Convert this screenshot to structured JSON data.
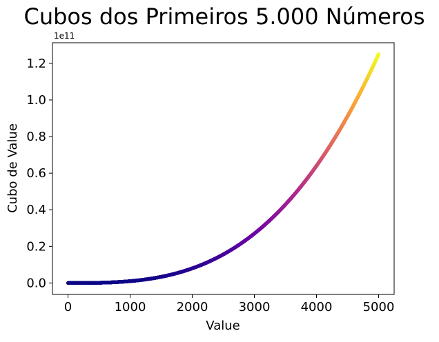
{
  "chart_data": {
    "type": "scatter",
    "title": "Cubos dos Primeiros 5.000 Números",
    "xlabel": "Value",
    "ylabel": "Cubo de Value",
    "y_offset_label": "1e11",
    "xlim": [
      -250,
      5250
    ],
    "ylim": [
      -6250000000,
      131250000000
    ],
    "x_ticks": [
      0,
      1000,
      2000,
      3000,
      4000,
      5000
    ],
    "x_tick_labels": [
      "0",
      "1000",
      "2000",
      "3000",
      "4000",
      "5000"
    ],
    "y_ticks": [
      0,
      20000000000,
      40000000000,
      60000000000,
      80000000000,
      100000000000,
      120000000000
    ],
    "y_tick_labels": [
      "0.0",
      "0.2",
      "0.4",
      "0.6",
      "0.8",
      "1.0",
      "1.2"
    ],
    "grid": false,
    "colormap": "plasma",
    "colormap_stops": [
      "#0d0887",
      "#6a00a8",
      "#b12a90",
      "#e16462",
      "#fca636",
      "#f0f921"
    ],
    "series": [
      {
        "x_range": [
          1,
          5000
        ],
        "count": 5000,
        "formula": "y = x^3",
        "sample_x": [
          0,
          1000,
          2000,
          3000,
          4000,
          5000
        ],
        "sample_y": [
          0,
          1000000000,
          8000000000,
          27000000000,
          64000000000,
          125000000000
        ]
      }
    ]
  }
}
